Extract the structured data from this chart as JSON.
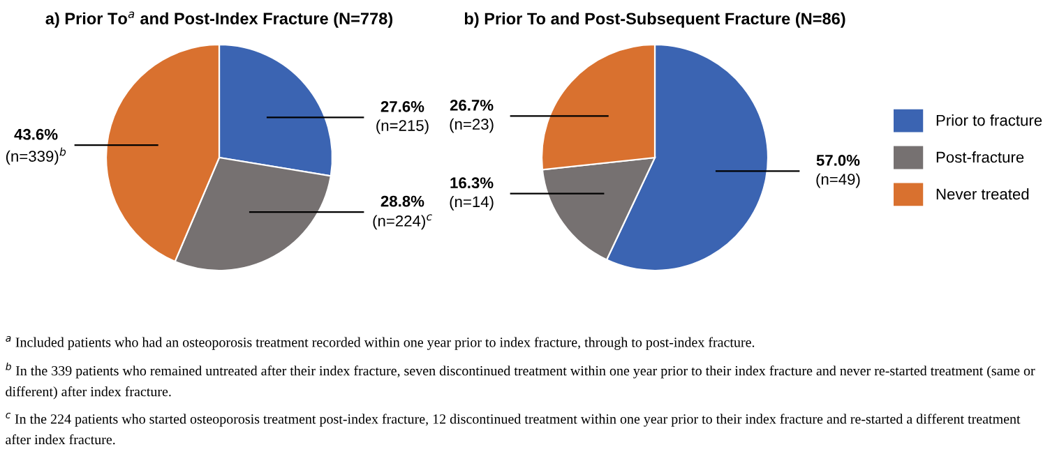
{
  "chart_data": [
    {
      "type": "pie",
      "title": "a) Prior To$^{a}$ and Post-Index Fracture (N=778)",
      "categories": [
        "Prior to fracture",
        "Post-fracture",
        "Never treated"
      ],
      "values": [
        27.6,
        28.8,
        43.6
      ],
      "colors": [
        "#3b64b2",
        "#767171",
        "#d9712f"
      ],
      "value_labels": [
        "27.6%\n(n=215)",
        "28.8%\n(n=224)$^{c}$",
        "43.6%\n(n=339)$^{b}$"
      ],
      "legend": "right",
      "annotations": [
        "$^{a}$ Included patients who had an osteoporosis treatment recorded within one year prior to index fracture, through to post-index fracture.",
        "$^{b}$ In the 339 patients who remained untreated after their index fracture, seven discontinued treatment within one year prior to their index fracture and never re-started treatment (same or different) after index fracture.",
        "$^{c}$ In the 224 patients who started osteoporosis treatment post-index fracture, 12 discontinued treatment within one year prior to their index fracture and re-started a different treatment after index fracture."
      ]
    },
    {
      "type": "pie",
      "title": "b) Prior To and Post-Subsequent Fracture (N=86)",
      "categories": [
        null,
        null,
        null
      ],
      "values": [
        57.0,
        16.3,
        26.7
      ],
      "colors": [
        "#3b64b2",
        "#767171",
        "#d9712f"
      ],
      "value_labels": [
        "57.0%\n(n=49)",
        "16.3%\n(n=14)",
        "26.7%\n(n=23)"
      ]
    }
  ]
}
